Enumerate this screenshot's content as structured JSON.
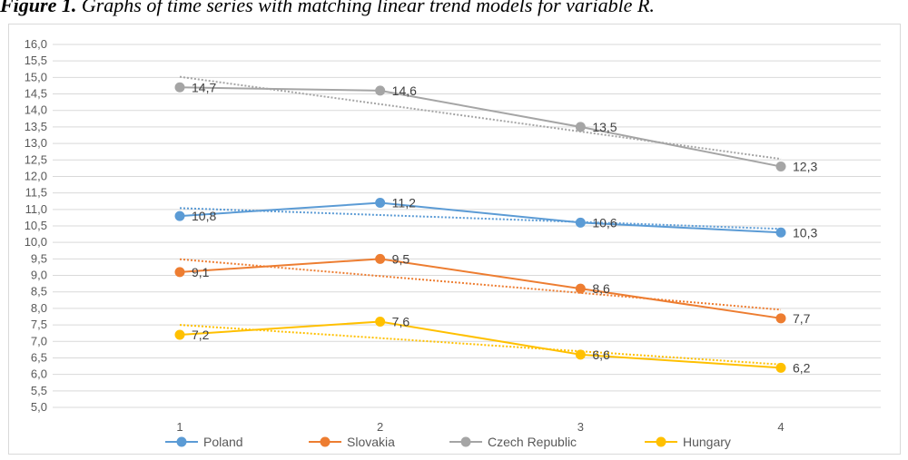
{
  "caption": {
    "prefix": "Figure 1.",
    "text": "Graphs of time series with matching linear trend models for variable R."
  },
  "chart_data": {
    "type": "line",
    "title": "",
    "xlabel": "",
    "ylabel": "",
    "x": [
      1,
      2,
      3,
      4
    ],
    "ylim": [
      5.0,
      16.0
    ],
    "ytick_step": 0.5,
    "ytick_labels": [
      "5,0",
      "5,5",
      "6,0",
      "6,5",
      "7,0",
      "7,5",
      "8,0",
      "8,5",
      "9,0",
      "9,5",
      "10,0",
      "10,5",
      "11,0",
      "11,5",
      "12,0",
      "12,5",
      "13,0",
      "13,5",
      "14,0",
      "14,5",
      "15,0",
      "15,5",
      "16,0"
    ],
    "xtick_labels": [
      "1",
      "2",
      "3",
      "4"
    ],
    "grid": true,
    "legend_position": "bottom",
    "trendlines": "linear, dotted",
    "series": [
      {
        "name": "Poland",
        "color": "#5b9bd5",
        "values": [
          10.8,
          11.2,
          10.6,
          10.3
        ],
        "labels": [
          "10,8",
          "11,2",
          "10,6",
          "10,3"
        ]
      },
      {
        "name": "Slovakia",
        "color": "#ed7d31",
        "values": [
          9.1,
          9.5,
          8.6,
          7.7
        ],
        "labels": [
          "9,1",
          "9,5",
          "8,6",
          "7,7"
        ]
      },
      {
        "name": "Czech Republic",
        "color": "#a5a5a5",
        "values": [
          14.7,
          14.6,
          13.5,
          12.3
        ],
        "labels": [
          "14,7",
          "14,6",
          "13,5",
          "12,3"
        ]
      },
      {
        "name": "Hungary",
        "color": "#ffc000",
        "values": [
          7.2,
          7.6,
          6.6,
          6.2
        ],
        "labels": [
          "7,2",
          "7,6",
          "6,6",
          "6,2"
        ]
      }
    ]
  }
}
